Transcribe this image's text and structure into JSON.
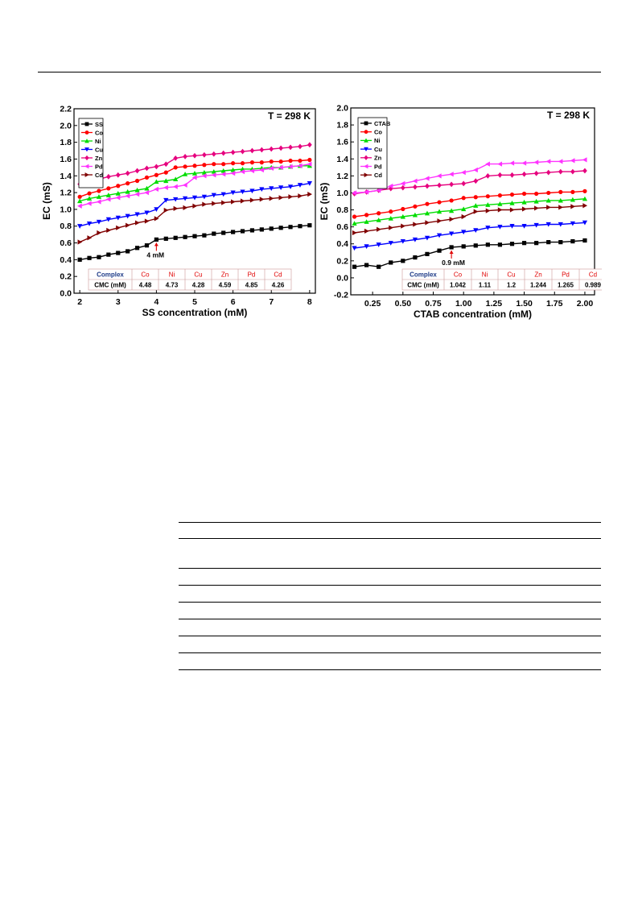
{
  "chart_data": [
    {
      "type": "line",
      "xlabel": "SS concentration (mM)",
      "ylabel": "EC (mS)",
      "xlim": [
        1.85,
        8.15
      ],
      "ylim": [
        0.0,
        2.2
      ],
      "xticks": [
        2,
        3,
        4,
        5,
        6,
        7,
        8
      ],
      "yticks": [
        0.0,
        0.2,
        0.4,
        0.6,
        0.8,
        1.0,
        1.2,
        1.4,
        1.6,
        1.8,
        2.0,
        2.2
      ],
      "ytick_labels": [
        "0.0",
        "0.2",
        "0.4",
        "0.6",
        "0.8",
        "1.0",
        "1.2",
        "1.4",
        "1.6",
        "1.8",
        "2.0",
        "2.2"
      ],
      "condition": "T = 298 K",
      "annotation": "4 mM",
      "annotation_x": 4.0,
      "legend_position": "top-left",
      "x": [
        2.0,
        2.25,
        2.5,
        2.75,
        3.0,
        3.25,
        3.5,
        3.75,
        4.0,
        4.25,
        4.5,
        4.75,
        5.0,
        5.25,
        5.5,
        5.75,
        6.0,
        6.25,
        6.5,
        6.75,
        7.0,
        7.25,
        7.5,
        7.75,
        8.0
      ],
      "series": [
        {
          "name": "SS",
          "color": "#000000",
          "marker": "square",
          "values": [
            0.4,
            0.42,
            0.43,
            0.46,
            0.48,
            0.5,
            0.54,
            0.57,
            0.64,
            0.65,
            0.66,
            0.67,
            0.68,
            0.69,
            0.71,
            0.72,
            0.73,
            0.74,
            0.75,
            0.76,
            0.77,
            0.78,
            0.79,
            0.8,
            0.81
          ]
        },
        {
          "name": "Co",
          "color": "#ff0000",
          "marker": "circle",
          "values": [
            1.15,
            1.19,
            1.22,
            1.25,
            1.28,
            1.31,
            1.34,
            1.38,
            1.41,
            1.44,
            1.5,
            1.51,
            1.52,
            1.53,
            1.54,
            1.54,
            1.55,
            1.55,
            1.56,
            1.56,
            1.57,
            1.57,
            1.58,
            1.58,
            1.59
          ]
        },
        {
          "name": "Ni",
          "color": "#00dd00",
          "marker": "triangle-up",
          "values": [
            1.1,
            1.13,
            1.15,
            1.17,
            1.19,
            1.21,
            1.23,
            1.25,
            1.33,
            1.34,
            1.36,
            1.42,
            1.43,
            1.44,
            1.45,
            1.46,
            1.47,
            1.48,
            1.48,
            1.49,
            1.5,
            1.5,
            1.51,
            1.52,
            1.52
          ]
        },
        {
          "name": "Cu",
          "color": "#0000ff",
          "marker": "triangle-down",
          "values": [
            0.8,
            0.83,
            0.85,
            0.88,
            0.9,
            0.92,
            0.94,
            0.96,
            1.0,
            1.11,
            1.12,
            1.13,
            1.14,
            1.15,
            1.17,
            1.18,
            1.2,
            1.21,
            1.22,
            1.24,
            1.25,
            1.26,
            1.27,
            1.29,
            1.31
          ]
        },
        {
          "name": "Zn",
          "color": "#e6007e",
          "marker": "diamond",
          "values": [
            1.3,
            1.33,
            1.36,
            1.39,
            1.41,
            1.43,
            1.46,
            1.49,
            1.51,
            1.54,
            1.61,
            1.63,
            1.64,
            1.65,
            1.66,
            1.67,
            1.68,
            1.69,
            1.7,
            1.71,
            1.72,
            1.73,
            1.74,
            1.75,
            1.77
          ]
        },
        {
          "name": "Pd",
          "color": "#ff33ff",
          "marker": "triangle-left",
          "values": [
            1.04,
            1.07,
            1.09,
            1.12,
            1.14,
            1.16,
            1.18,
            1.2,
            1.24,
            1.26,
            1.27,
            1.29,
            1.38,
            1.4,
            1.41,
            1.42,
            1.43,
            1.45,
            1.46,
            1.47,
            1.49,
            1.5,
            1.51,
            1.52,
            1.54
          ]
        },
        {
          "name": "Cd",
          "color": "#800000",
          "marker": "triangle-right",
          "values": [
            0.61,
            0.66,
            0.72,
            0.75,
            0.78,
            0.81,
            0.84,
            0.86,
            0.89,
            0.99,
            1.01,
            1.02,
            1.04,
            1.06,
            1.07,
            1.08,
            1.09,
            1.1,
            1.11,
            1.12,
            1.13,
            1.14,
            1.15,
            1.16,
            1.18
          ]
        }
      ],
      "table": {
        "header": [
          "Complex",
          "Co",
          "Ni",
          "Cu",
          "Zn",
          "Pd",
          "Cd"
        ],
        "row": [
          "CMC (mM)",
          "4.48",
          "4.73",
          "4.28",
          "4.59",
          "4.85",
          "4.26"
        ]
      }
    },
    {
      "type": "line",
      "xlabel": "CTAB concentration (mM)",
      "ylabel": "EC (mS)",
      "xlim": [
        0.07,
        2.08
      ],
      "ylim": [
        -0.2,
        2.0
      ],
      "xticks": [
        0.25,
        0.5,
        0.75,
        1.0,
        1.25,
        1.5,
        1.75,
        2.0
      ],
      "xtick_labels": [
        "0.25",
        "0.50",
        "0.75",
        "1.00",
        "1.25",
        "1.50",
        "1.75",
        "2.00"
      ],
      "yticks": [
        -0.2,
        0.0,
        0.2,
        0.4,
        0.6,
        0.8,
        1.0,
        1.2,
        1.4,
        1.6,
        1.8,
        2.0
      ],
      "ytick_labels": [
        "-0.2",
        "0.0",
        "0.2",
        "0.4",
        "0.6",
        "0.8",
        "1.0",
        "1.2",
        "1.4",
        "1.6",
        "1.8",
        "2.0"
      ],
      "condition": "T = 298 K",
      "annotation": "0.9 mM",
      "annotation_x": 0.9,
      "legend_position": "top-left",
      "x": [
        0.1,
        0.2,
        0.3,
        0.4,
        0.5,
        0.6,
        0.7,
        0.8,
        0.9,
        1.0,
        1.1,
        1.2,
        1.3,
        1.4,
        1.5,
        1.6,
        1.7,
        1.8,
        1.9,
        2.0
      ],
      "series": [
        {
          "name": "CTAB",
          "color": "#000000",
          "marker": "square",
          "values": [
            0.13,
            0.15,
            0.13,
            0.18,
            0.2,
            0.24,
            0.28,
            0.32,
            0.36,
            0.37,
            0.38,
            0.39,
            0.39,
            0.4,
            0.41,
            0.41,
            0.42,
            0.42,
            0.43,
            0.44
          ]
        },
        {
          "name": "Co",
          "color": "#ff0000",
          "marker": "circle",
          "values": [
            0.72,
            0.74,
            0.76,
            0.78,
            0.81,
            0.84,
            0.87,
            0.89,
            0.91,
            0.94,
            0.95,
            0.96,
            0.97,
            0.98,
            0.99,
            0.99,
            1.0,
            1.01,
            1.01,
            1.02
          ]
        },
        {
          "name": "Ni",
          "color": "#00dd00",
          "marker": "triangle-up",
          "values": [
            0.64,
            0.66,
            0.68,
            0.7,
            0.72,
            0.74,
            0.76,
            0.78,
            0.79,
            0.81,
            0.85,
            0.86,
            0.87,
            0.88,
            0.89,
            0.9,
            0.91,
            0.91,
            0.92,
            0.93
          ]
        },
        {
          "name": "Cu",
          "color": "#0000ff",
          "marker": "triangle-down",
          "values": [
            0.35,
            0.37,
            0.39,
            0.41,
            0.43,
            0.45,
            0.47,
            0.5,
            0.52,
            0.54,
            0.56,
            0.59,
            0.6,
            0.61,
            0.61,
            0.62,
            0.63,
            0.63,
            0.64,
            0.65
          ]
        },
        {
          "name": "Zn",
          "color": "#e6007e",
          "marker": "diamond",
          "values": [
            0.99,
            1.01,
            1.03,
            1.05,
            1.06,
            1.07,
            1.08,
            1.09,
            1.1,
            1.11,
            1.14,
            1.2,
            1.21,
            1.21,
            1.22,
            1.23,
            1.24,
            1.25,
            1.25,
            1.26
          ]
        },
        {
          "name": "Pd",
          "color": "#ff33ff",
          "marker": "triangle-left",
          "values": [
            1.0,
            1.01,
            1.03,
            1.08,
            1.11,
            1.14,
            1.17,
            1.2,
            1.22,
            1.24,
            1.27,
            1.34,
            1.34,
            1.35,
            1.35,
            1.36,
            1.37,
            1.37,
            1.38,
            1.39
          ]
        },
        {
          "name": "Cd",
          "color": "#800000",
          "marker": "triangle-right",
          "values": [
            0.53,
            0.55,
            0.57,
            0.59,
            0.61,
            0.63,
            0.65,
            0.67,
            0.69,
            0.72,
            0.78,
            0.79,
            0.8,
            0.8,
            0.81,
            0.82,
            0.83,
            0.83,
            0.84,
            0.85
          ]
        }
      ],
      "table": {
        "header": [
          "Complex",
          "Co",
          "Ni",
          "Cu",
          "Zn",
          "Pd",
          "Cd"
        ],
        "row": [
          "CMC (mM)",
          "1.042",
          "1.11",
          "1.2",
          "1.244",
          "1.265",
          "0.989"
        ]
      }
    }
  ]
}
